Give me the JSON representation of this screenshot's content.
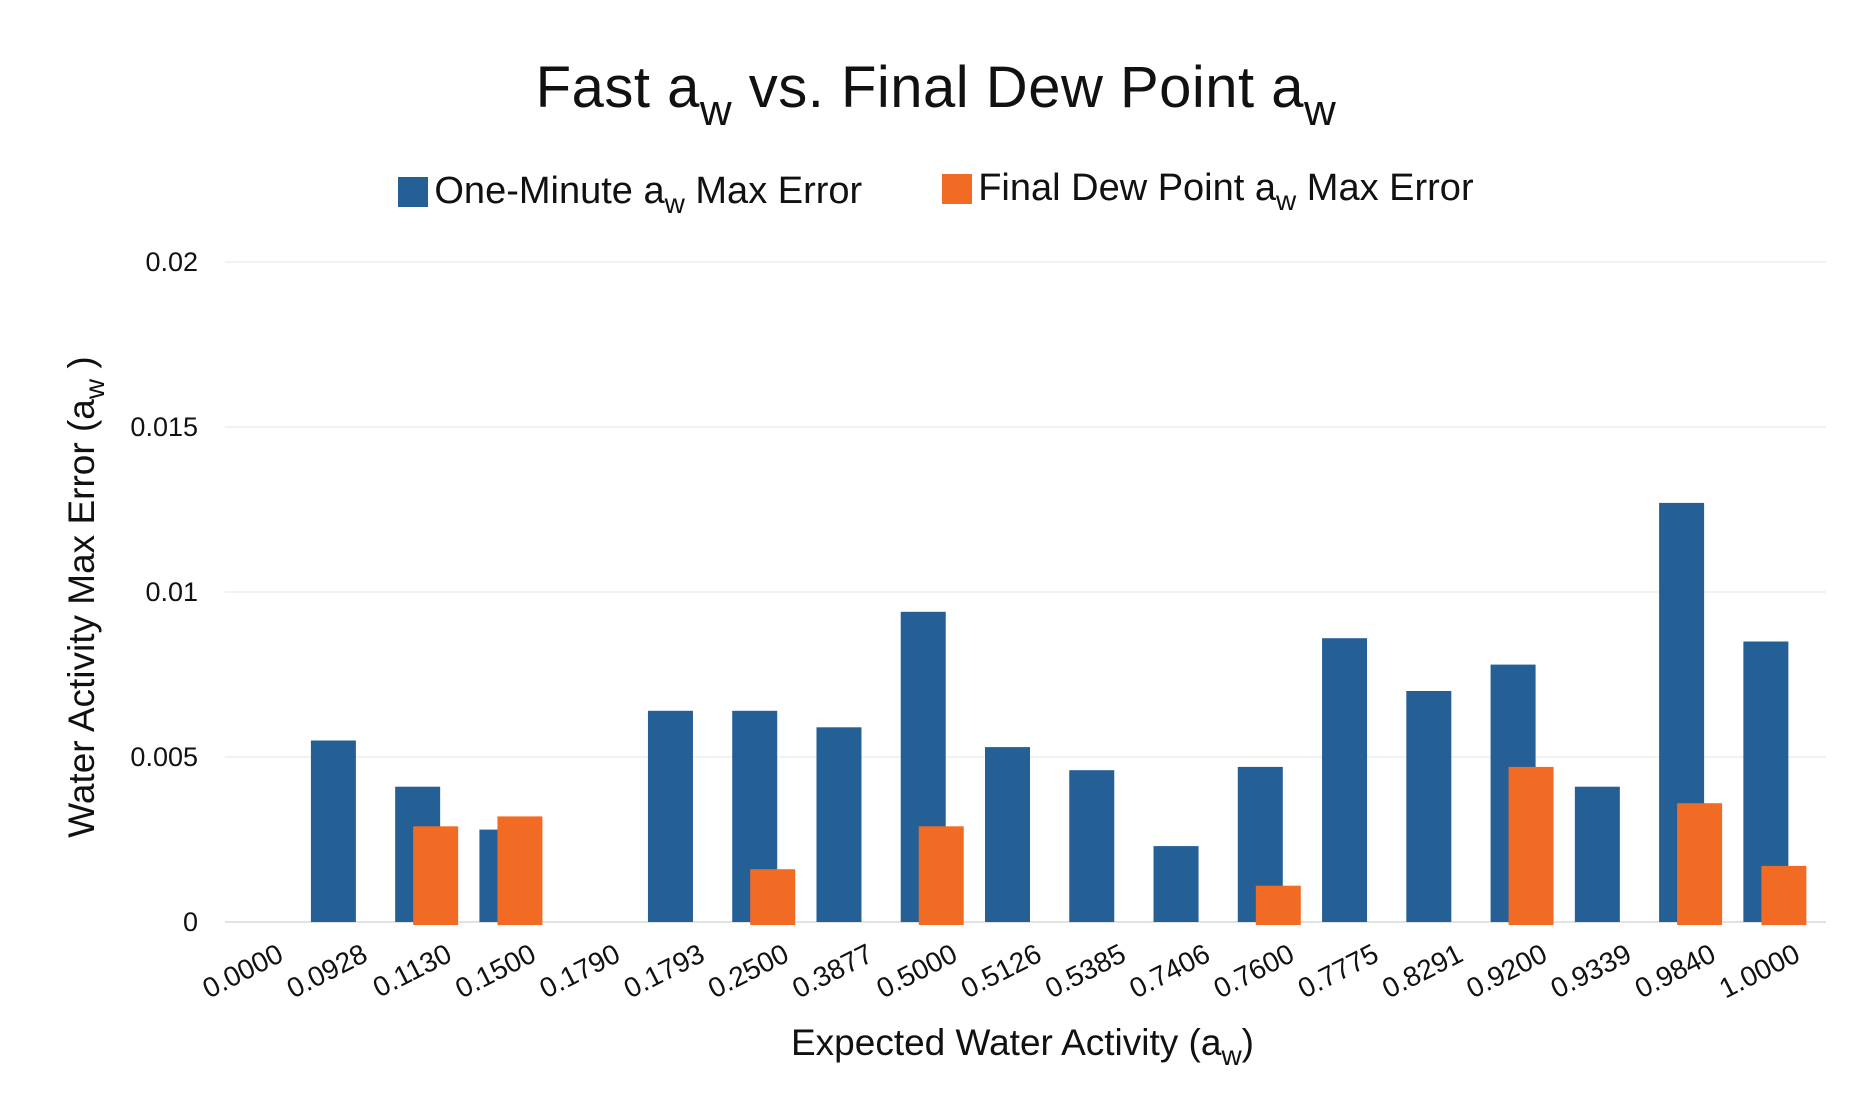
{
  "chart_data": {
    "type": "bar",
    "title": {
      "main": "Fast a",
      "sub": "w",
      "mid": "vs.  Final  Dew  Point  a",
      "sub2": "w"
    },
    "xlabel": {
      "main": "Expected Water Activity (a",
      "sub": "w",
      "end": ")"
    },
    "ylabel": {
      "main": "Water Activity Max Error (a",
      "sub": "w",
      "end": " )"
    },
    "ylim": [
      0,
      0.02
    ],
    "yticks": [
      "0",
      "0.005",
      "0.01",
      "0.015",
      "0.02"
    ],
    "ytick_values": [
      0,
      0.005,
      0.01,
      0.015,
      0.02
    ],
    "categories": [
      "0.0000",
      "0.0928",
      "0.1130",
      "0.1500",
      "0.1790",
      "0.1793",
      "0.2500",
      "0.3877",
      "0.5000",
      "0.5126",
      "0.5385",
      "0.7406",
      "0.7600",
      "0.7775",
      "0.8291",
      "0.9200",
      "0.9339",
      "0.9840",
      "1.0000"
    ],
    "series": [
      {
        "name": {
          "main": "One-Minute a",
          "sub": "w",
          "end": " Max Error"
        },
        "color": "#245f96",
        "values": [
          0,
          0.0055,
          0.0041,
          0.0028,
          0,
          0.0064,
          0.0064,
          0.0059,
          0.0094,
          0.0053,
          0.0046,
          0.0023,
          0.0047,
          0.0086,
          0.007,
          0.0078,
          0.0041,
          0.0127,
          0.0085
        ]
      },
      {
        "name": {
          "main": "Final Dew Point a",
          "sub": "w",
          "end": " Max Error"
        },
        "color": "#f26b25",
        "values": [
          0,
          0,
          0.0029,
          0.0032,
          0,
          0,
          0.0016,
          0,
          0.0029,
          0,
          0,
          0,
          0.0011,
          0,
          0,
          0.0047,
          0,
          0.0036,
          0.0017
        ]
      }
    ]
  }
}
